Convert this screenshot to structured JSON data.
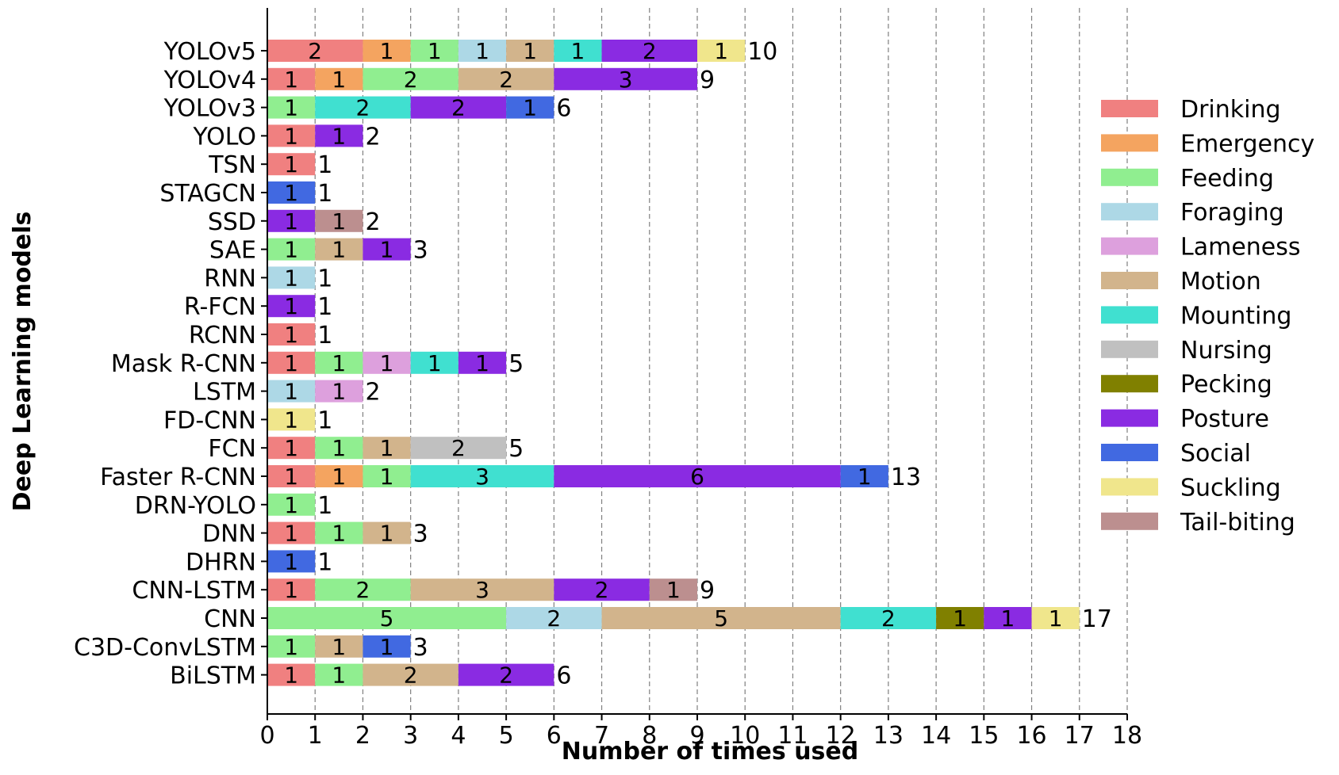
{
  "chart_data": {
    "type": "bar",
    "orientation": "horizontal",
    "stacked": true,
    "xlabel": "Number of times used",
    "ylabel": "Deep Learning models",
    "xlim": [
      0,
      18
    ],
    "xticks": [
      0,
      1,
      2,
      3,
      4,
      5,
      6,
      7,
      8,
      9,
      10,
      11,
      12,
      13,
      14,
      15,
      16,
      17,
      18
    ],
    "grid": "vertical dashed",
    "legend_position": "right",
    "categories": [
      "YOLOv5",
      "YOLOv4",
      "YOLOv3",
      "YOLO",
      "TSN",
      "STAGCN",
      "SSD",
      "SAE",
      "RNN",
      "R-FCN",
      "RCNN",
      "Mask R-CNN",
      "LSTM",
      "FD-CNN",
      "FCN",
      "Faster R-CNN",
      "DRN-YOLO",
      "DNN",
      "DHRN",
      "CNN-LSTM",
      "CNN",
      "C3D-ConvLSTM",
      "BiLSTM"
    ],
    "series": [
      {
        "name": "Drinking",
        "color": "#f08080",
        "values": [
          2,
          1,
          0,
          1,
          1,
          0,
          0,
          0,
          0,
          0,
          1,
          1,
          0,
          0,
          1,
          1,
          0,
          1,
          0,
          1,
          0,
          0,
          1
        ]
      },
      {
        "name": "Emergency",
        "color": "#f4a460",
        "values": [
          1,
          1,
          0,
          0,
          0,
          0,
          0,
          0,
          0,
          0,
          0,
          0,
          0,
          0,
          0,
          1,
          0,
          0,
          0,
          0,
          0,
          0,
          0
        ]
      },
      {
        "name": "Feeding",
        "color": "#90ee90",
        "values": [
          1,
          2,
          1,
          0,
          0,
          0,
          0,
          1,
          0,
          0,
          0,
          1,
          0,
          0,
          1,
          1,
          1,
          1,
          0,
          2,
          5,
          1,
          1
        ]
      },
      {
        "name": "Foraging",
        "color": "#add8e6",
        "values": [
          1,
          0,
          0,
          0,
          0,
          0,
          0,
          0,
          1,
          0,
          0,
          0,
          1,
          0,
          0,
          0,
          0,
          0,
          0,
          0,
          2,
          0,
          0
        ]
      },
      {
        "name": "Lameness",
        "color": "#dda0dd",
        "values": [
          0,
          0,
          0,
          0,
          0,
          0,
          0,
          0,
          0,
          0,
          0,
          1,
          1,
          0,
          0,
          0,
          0,
          0,
          0,
          0,
          0,
          0,
          0
        ]
      },
      {
        "name": "Motion",
        "color": "#d2b48c",
        "values": [
          1,
          2,
          0,
          0,
          0,
          0,
          0,
          1,
          0,
          0,
          0,
          0,
          0,
          0,
          1,
          0,
          0,
          1,
          0,
          3,
          5,
          1,
          2
        ]
      },
      {
        "name": "Mounting",
        "color": "#40e0d0",
        "values": [
          1,
          0,
          2,
          0,
          0,
          0,
          0,
          0,
          0,
          0,
          0,
          1,
          0,
          0,
          0,
          3,
          0,
          0,
          0,
          0,
          2,
          0,
          0
        ]
      },
      {
        "name": "Nursing",
        "color": "#c0c0c0",
        "values": [
          0,
          0,
          0,
          0,
          0,
          0,
          0,
          0,
          0,
          0,
          0,
          0,
          0,
          0,
          2,
          0,
          0,
          0,
          0,
          0,
          0,
          0,
          0
        ]
      },
      {
        "name": "Pecking",
        "color": "#808000",
        "values": [
          0,
          0,
          0,
          0,
          0,
          0,
          0,
          0,
          0,
          0,
          0,
          0,
          0,
          0,
          0,
          0,
          0,
          0,
          0,
          0,
          1,
          0,
          0
        ]
      },
      {
        "name": "Posture",
        "color": "#8a2be2",
        "values": [
          2,
          3,
          2,
          1,
          0,
          0,
          1,
          1,
          0,
          1,
          0,
          1,
          0,
          0,
          0,
          6,
          0,
          0,
          0,
          2,
          1,
          0,
          2
        ]
      },
      {
        "name": "Social",
        "color": "#4169e1",
        "values": [
          0,
          0,
          1,
          0,
          0,
          1,
          0,
          0,
          0,
          0,
          0,
          0,
          0,
          0,
          0,
          1,
          0,
          0,
          1,
          0,
          0,
          1,
          0
        ]
      },
      {
        "name": "Suckling",
        "color": "#f0e68c",
        "values": [
          1,
          0,
          0,
          0,
          0,
          0,
          0,
          0,
          0,
          0,
          0,
          0,
          0,
          1,
          0,
          0,
          0,
          0,
          0,
          0,
          1,
          0,
          0
        ]
      },
      {
        "name": "Tail-biting",
        "color": "#bc8f8f",
        "values": [
          0,
          0,
          0,
          0,
          0,
          0,
          1,
          0,
          0,
          0,
          0,
          0,
          0,
          0,
          0,
          0,
          0,
          0,
          0,
          1,
          0,
          0,
          0
        ]
      }
    ],
    "totals": [
      10,
      9,
      6,
      2,
      1,
      1,
      2,
      3,
      1,
      1,
      1,
      5,
      2,
      1,
      5,
      13,
      1,
      3,
      1,
      9,
      17,
      3,
      6
    ]
  }
}
